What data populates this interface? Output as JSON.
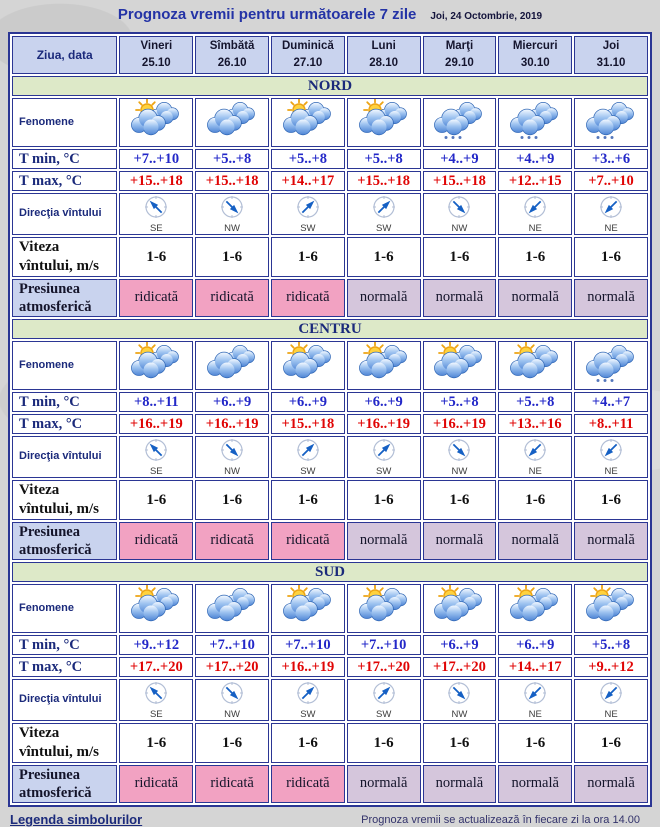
{
  "title": "Prognoza vremii pentru următoarele 7 zile",
  "date": "Joi, 24 Octombrie, 2019",
  "header": {
    "day_label": "Ziua, data",
    "days": [
      {
        "name": "Vineri",
        "date": "25.10"
      },
      {
        "name": "Sîmbătă",
        "date": "26.10"
      },
      {
        "name": "Duminică",
        "date": "27.10"
      },
      {
        "name": "Luni",
        "date": "28.10"
      },
      {
        "name": "Marţi",
        "date": "29.10"
      },
      {
        "name": "Miercuri",
        "date": "30.10"
      },
      {
        "name": "Joi",
        "date": "31.10"
      }
    ]
  },
  "row_labels": {
    "phenomena": "Fenomene",
    "tmin": "T min, °C",
    "tmax": "T max, °C",
    "wind_dir": "Direcţia vîntului",
    "wind_speed": "Viteza vîntului, m/s",
    "pressure": "Presiunea atmosferică"
  },
  "sections": [
    {
      "name": "NORD",
      "phenomena": [
        "sun-clouds",
        "clouds",
        "sun-clouds",
        "sun-clouds",
        "clouds-drizzle",
        "clouds-drizzle",
        "clouds-drizzle"
      ],
      "tmin": [
        "+7..+10",
        "+5..+8",
        "+5..+8",
        "+5..+8",
        "+4..+9",
        "+4..+9",
        "+3..+6"
      ],
      "tmax": [
        "+15..+18",
        "+15..+18",
        "+14..+17",
        "+15..+18",
        "+15..+18",
        "+12..+15",
        "+7..+10"
      ],
      "wind_dir": [
        "SE",
        "NW",
        "SW",
        "SW",
        "NW",
        "NE",
        "NE"
      ],
      "wind_speed": [
        "1-6",
        "1-6",
        "1-6",
        "1-6",
        "1-6",
        "1-6",
        "1-6"
      ],
      "pressure": [
        "ridicată",
        "ridicată",
        "ridicată",
        "normală",
        "normală",
        "normală",
        "normală"
      ],
      "pressure_levels": [
        "high",
        "high",
        "high",
        "normal",
        "normal",
        "normal",
        "normal"
      ]
    },
    {
      "name": "CENTRU",
      "phenomena": [
        "sun-clouds",
        "clouds",
        "sun-clouds",
        "sun-clouds",
        "sun-clouds",
        "sun-clouds",
        "clouds-drizzle"
      ],
      "tmin": [
        "+8..+11",
        "+6..+9",
        "+6..+9",
        "+6..+9",
        "+5..+8",
        "+5..+8",
        "+4..+7"
      ],
      "tmax": [
        "+16..+19",
        "+16..+19",
        "+15..+18",
        "+16..+19",
        "+16..+19",
        "+13..+16",
        "+8..+11"
      ],
      "wind_dir": [
        "SE",
        "NW",
        "SW",
        "SW",
        "NW",
        "NE",
        "NE"
      ],
      "wind_speed": [
        "1-6",
        "1-6",
        "1-6",
        "1-6",
        "1-6",
        "1-6",
        "1-6"
      ],
      "pressure": [
        "ridicată",
        "ridicată",
        "ridicată",
        "normală",
        "normală",
        "normală",
        "normală"
      ],
      "pressure_levels": [
        "high",
        "high",
        "high",
        "normal",
        "normal",
        "normal",
        "normal"
      ]
    },
    {
      "name": "SUD",
      "phenomena": [
        "sun-clouds",
        "clouds",
        "sun-clouds",
        "sun-clouds",
        "sun-clouds",
        "sun-clouds",
        "sun-clouds"
      ],
      "tmin": [
        "+9..+12",
        "+7..+10",
        "+7..+10",
        "+7..+10",
        "+6..+9",
        "+6..+9",
        "+5..+8"
      ],
      "tmax": [
        "+17..+20",
        "+17..+20",
        "+16..+19",
        "+17..+20",
        "+17..+20",
        "+14..+17",
        "+9..+12"
      ],
      "wind_dir": [
        "SE",
        "NW",
        "SW",
        "SW",
        "NW",
        "NE",
        "NE"
      ],
      "wind_speed": [
        "1-6",
        "1-6",
        "1-6",
        "1-6",
        "1-6",
        "1-6",
        "1-6"
      ],
      "pressure": [
        "ridicată",
        "ridicată",
        "ridicată",
        "normală",
        "normală",
        "normală",
        "normală"
      ],
      "pressure_levels": [
        "high",
        "high",
        "high",
        "normal",
        "normal",
        "normal",
        "normal"
      ]
    }
  ],
  "wind_rotations": {
    "SE": 315,
    "NW": 135,
    "SW": 45,
    "NE": 225
  },
  "footer": {
    "legend_link": "Legenda simbolurilor",
    "note": "Prognoza vremii se actualizează în fiecare zi la ora 14.00"
  },
  "colors": {
    "border_navy": "#2b3694",
    "header_bg": "#c9d3ee",
    "section_bg": "#dde9c8",
    "tmin_text": "#2328c8",
    "tmax_text": "#e00505",
    "pressure_high_bg": "#f2a2c2",
    "pressure_normal_bg": "#d5c6dc",
    "title_text": "#2433a6"
  }
}
